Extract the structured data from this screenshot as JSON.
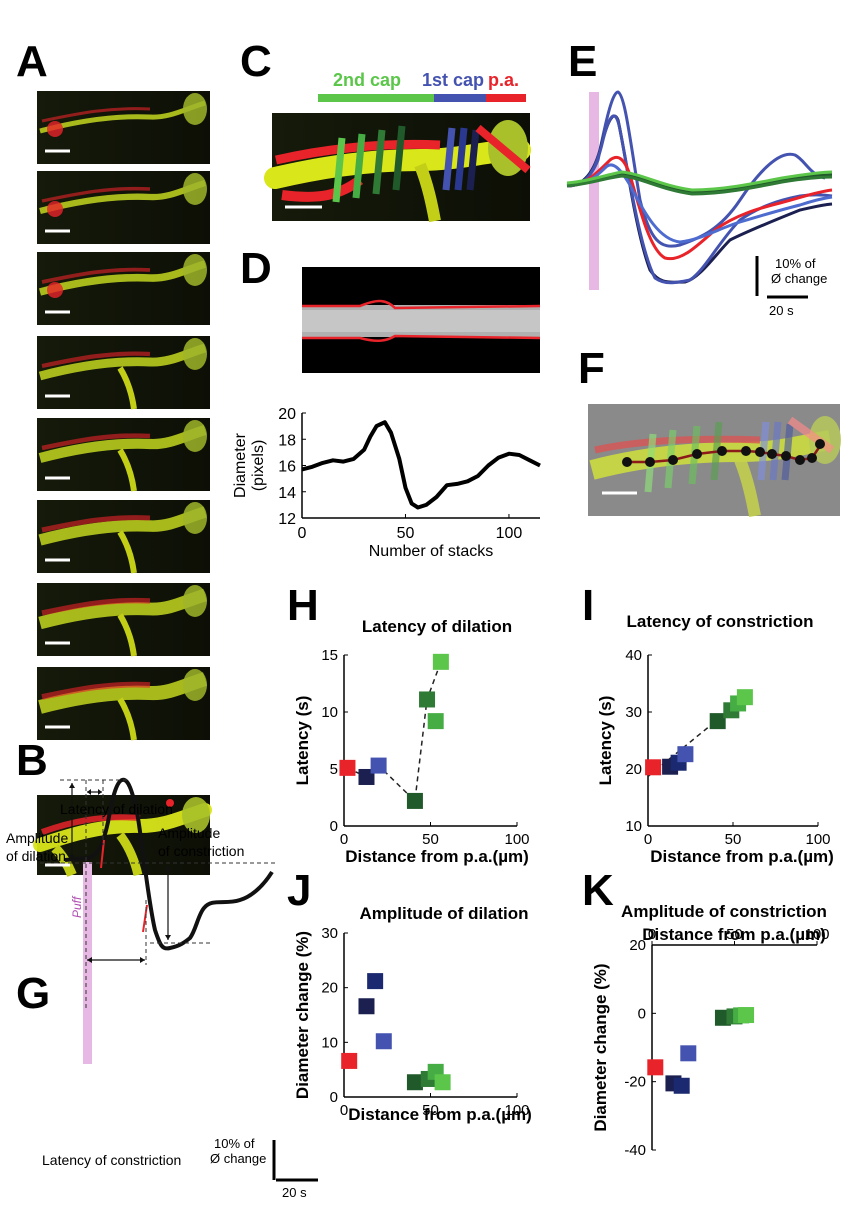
{
  "panel_letters": {
    "A": "A",
    "B": "B",
    "C": "C",
    "D": "D",
    "E": "E",
    "F": "F",
    "G": "G",
    "H": "H",
    "I": "I",
    "J": "J",
    "K": "K"
  },
  "colors": {
    "red": "#e8232a",
    "blue": "#4453b0",
    "navy": "#1b2050",
    "green_light": "#5cc64a",
    "green_dark": "#215a2a",
    "yellow": "#d9e61a",
    "pink": "#e6b8e3"
  },
  "panel_c": {
    "label_2nd": "2nd cap",
    "label_1st": "1st cap",
    "label_pa": "p.a."
  },
  "panel_e": {
    "scale_y_line1": "10% of",
    "scale_y_line2": "Ø change",
    "scale_x": "20 s"
  },
  "panel_g": {
    "latency_dilation": "Latency of dilation",
    "amplitude_dilation_line1": "Amplitude",
    "amplitude_dilation_line2": "of dilation",
    "amplitude_constriction_line1": "Amplitude",
    "amplitude_constriction_line2": "of constriction",
    "latency_constriction": "Latency of constriction",
    "puff": "Puff",
    "scale_y_line1": "10% of",
    "scale_y_line2": "Ø change",
    "scale_x": "20 s"
  },
  "chart_data": [
    {
      "id": "D",
      "type": "line",
      "xlabel": "Number of stacks",
      "ylabel": "Diameter (pixels)",
      "ylabel_line1": "Diameter",
      "ylabel_line2": "(pixels)",
      "xlim": [
        0,
        115
      ],
      "ylim": [
        12,
        20
      ],
      "xticks": [
        0,
        50,
        100
      ],
      "yticks": [
        12,
        14,
        16,
        18,
        20
      ],
      "x": [
        0,
        5,
        10,
        15,
        20,
        25,
        30,
        33,
        36,
        40,
        43,
        47,
        50,
        53,
        56,
        60,
        65,
        70,
        75,
        80,
        85,
        90,
        95,
        100,
        105,
        110,
        115
      ],
      "y": [
        15.7,
        15.9,
        16.2,
        16.4,
        16.3,
        16.5,
        17.2,
        18.2,
        19.0,
        19.3,
        18.5,
        16.5,
        14.3,
        13.1,
        12.8,
        13.0,
        13.6,
        14.5,
        14.6,
        14.8,
        15.2,
        16.0,
        16.6,
        16.9,
        16.8,
        16.4,
        16.0
      ]
    },
    {
      "id": "H",
      "type": "scatter",
      "title": "Latency of dilation",
      "xlabel": "Distance from p.a.(µm)",
      "ylabel": "Latency (s)",
      "xlim": [
        0,
        100
      ],
      "ylim": [
        0,
        15
      ],
      "xticks": [
        0,
        50,
        100
      ],
      "yticks": [
        0,
        5,
        10,
        15
      ],
      "points": [
        {
          "x": 2,
          "y": 5.1,
          "color": "#e8232a"
        },
        {
          "x": 13,
          "y": 4.3,
          "color": "#1b2050"
        },
        {
          "x": 20,
          "y": 5.3,
          "color": "#4453b0"
        },
        {
          "x": 41,
          "y": 2.2,
          "color": "#215a2a"
        },
        {
          "x": 48,
          "y": 11.1,
          "color": "#2f7a35"
        },
        {
          "x": 53,
          "y": 9.2,
          "color": "#46ad44"
        },
        {
          "x": 56,
          "y": 14.4,
          "color": "#5cc64a"
        }
      ],
      "dashed_path": [
        [
          2,
          5.1
        ],
        [
          13,
          4.3
        ],
        [
          20,
          5.3
        ],
        [
          41,
          2.2
        ],
        [
          48,
          11.1
        ],
        [
          56,
          14.4
        ]
      ]
    },
    {
      "id": "I",
      "type": "scatter",
      "title": "Latency of constriction",
      "xlabel": "Distance from p.a.(µm)",
      "ylabel": "Latency (s)",
      "xlim": [
        0,
        100
      ],
      "ylim": [
        10,
        40
      ],
      "xticks": [
        0,
        50,
        100
      ],
      "yticks": [
        10,
        20,
        30,
        40
      ],
      "points": [
        {
          "x": 3,
          "y": 20.3,
          "color": "#e8232a"
        },
        {
          "x": 13,
          "y": 20.4,
          "color": "#1b2050"
        },
        {
          "x": 18,
          "y": 21.1,
          "color": "#1b2a70"
        },
        {
          "x": 22,
          "y": 22.6,
          "color": "#4453b0"
        },
        {
          "x": 41,
          "y": 28.4,
          "color": "#215a2a"
        },
        {
          "x": 49,
          "y": 30.3,
          "color": "#2f7a35"
        },
        {
          "x": 53,
          "y": 31.5,
          "color": "#46ad44"
        },
        {
          "x": 57,
          "y": 32.6,
          "color": "#5cc64a"
        }
      ],
      "fit_line": [
        [
          0,
          18.7
        ],
        [
          58,
          32.8
        ]
      ]
    },
    {
      "id": "J",
      "type": "scatter",
      "title": "Amplitude of dilation",
      "xlabel": "Distance from p.a.(µm)",
      "ylabel": "Diameter change (%)",
      "xlim": [
        0,
        100
      ],
      "ylim": [
        0,
        30
      ],
      "xticks": [
        0,
        50,
        100
      ],
      "yticks": [
        0,
        10,
        20,
        30
      ],
      "points": [
        {
          "x": 3,
          "y": 6.6,
          "color": "#e8232a"
        },
        {
          "x": 13,
          "y": 16.6,
          "color": "#1b2050"
        },
        {
          "x": 18,
          "y": 21.2,
          "color": "#1b2a70"
        },
        {
          "x": 23,
          "y": 10.2,
          "color": "#4453b0"
        },
        {
          "x": 41,
          "y": 2.7,
          "color": "#215a2a"
        },
        {
          "x": 49,
          "y": 3.3,
          "color": "#2f7a35"
        },
        {
          "x": 53,
          "y": 4.6,
          "color": "#46ad44"
        },
        {
          "x": 57,
          "y": 2.7,
          "color": "#5cc64a"
        }
      ]
    },
    {
      "id": "K",
      "type": "scatter",
      "title": "Amplitude of constriction",
      "xlabel": "Distance from p.a.(µm)",
      "ylabel": "Diameter change (%)",
      "xlim": [
        0,
        100
      ],
      "ylim": [
        -40,
        20
      ],
      "xticks": [
        0,
        50,
        100
      ],
      "yticks": [
        -40,
        -20,
        0,
        20
      ],
      "points": [
        {
          "x": 2,
          "y": -15.8,
          "color": "#e8232a"
        },
        {
          "x": 13,
          "y": -20.5,
          "color": "#1b2050"
        },
        {
          "x": 18,
          "y": -21.2,
          "color": "#1b2a70"
        },
        {
          "x": 22,
          "y": -11.7,
          "color": "#4453b0"
        },
        {
          "x": 43,
          "y": -1.3,
          "color": "#215a2a"
        },
        {
          "x": 50,
          "y": -0.9,
          "color": "#2f7a35"
        },
        {
          "x": 54,
          "y": -0.6,
          "color": "#46ad44"
        },
        {
          "x": 57,
          "y": -0.5,
          "color": "#5cc64a"
        }
      ]
    }
  ]
}
